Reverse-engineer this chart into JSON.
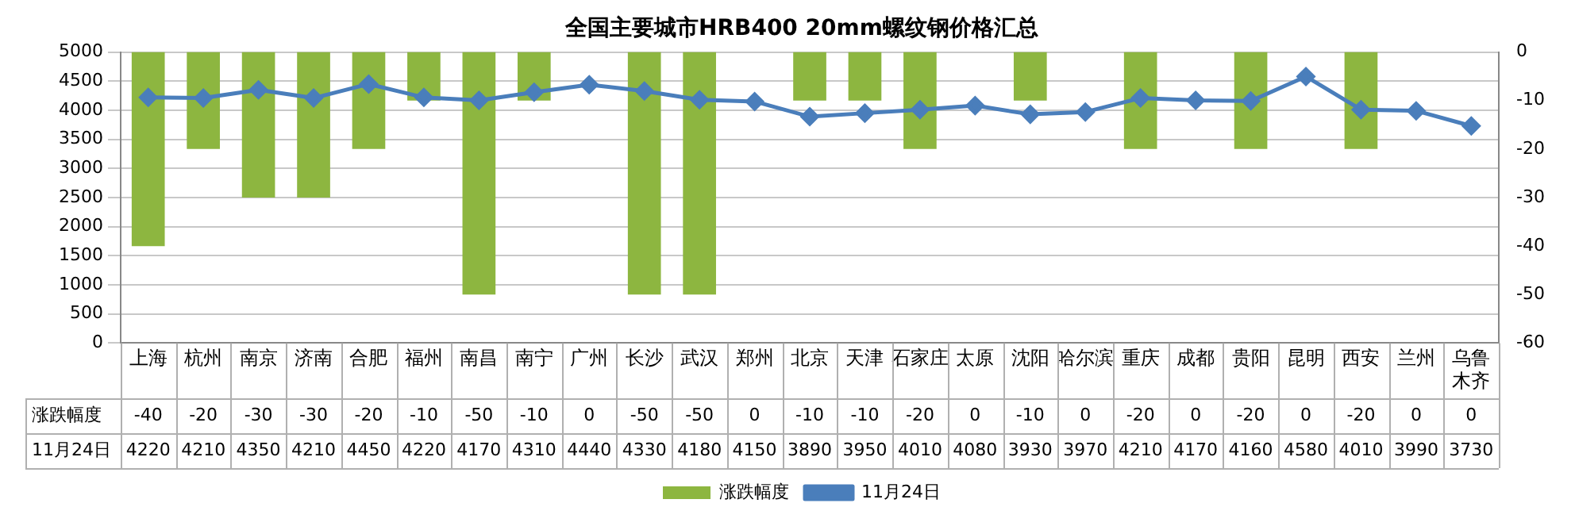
{
  "chart_data": {
    "type": "bar",
    "title": "全国主要城市HRB400 20mm螺纹钢价格汇总",
    "categories": [
      "上海",
      "杭州",
      "南京",
      "济南",
      "合肥",
      "福州",
      "南昌",
      "南宁",
      "广州",
      "长沙",
      "武汉",
      "郑州",
      "北京",
      "天津",
      "石家庄",
      "太原",
      "沈阳",
      "哈尔滨",
      "重庆",
      "成都",
      "贵阳",
      "昆明",
      "西安",
      "兰州",
      "乌鲁木齐"
    ],
    "series": [
      {
        "name": "涨跌幅度",
        "axis": "y2",
        "color": "#8db640",
        "values": [
          -40,
          -20,
          -30,
          -30,
          -20,
          -10,
          -50,
          -10,
          0,
          -50,
          -50,
          0,
          -10,
          -10,
          -20,
          0,
          -10,
          0,
          -20,
          0,
          -20,
          0,
          -20,
          0,
          0
        ]
      },
      {
        "name": "11月24日",
        "type": "line",
        "axis": "y",
        "color": "#4a7ebb",
        "marker": "diamond",
        "line_style": "solid",
        "values": [
          4220,
          4210,
          4350,
          4210,
          4450,
          4220,
          4170,
          4310,
          4440,
          4330,
          4180,
          4150,
          3890,
          3950,
          4010,
          4080,
          3930,
          3970,
          4210,
          4170,
          4160,
          4580,
          4010,
          3990,
          3730
        ]
      }
    ],
    "ylim": [
      0,
      5000
    ],
    "yticks": [
      0,
      500,
      1000,
      1500,
      2000,
      2500,
      3000,
      3500,
      4000,
      4500,
      5000
    ],
    "y2lim": [
      -60,
      0
    ],
    "y2ticks": [
      -60,
      -50,
      -40,
      -30,
      -20,
      -10,
      0
    ],
    "grid": "y",
    "legend": "bottom",
    "data_labels": true
  }
}
